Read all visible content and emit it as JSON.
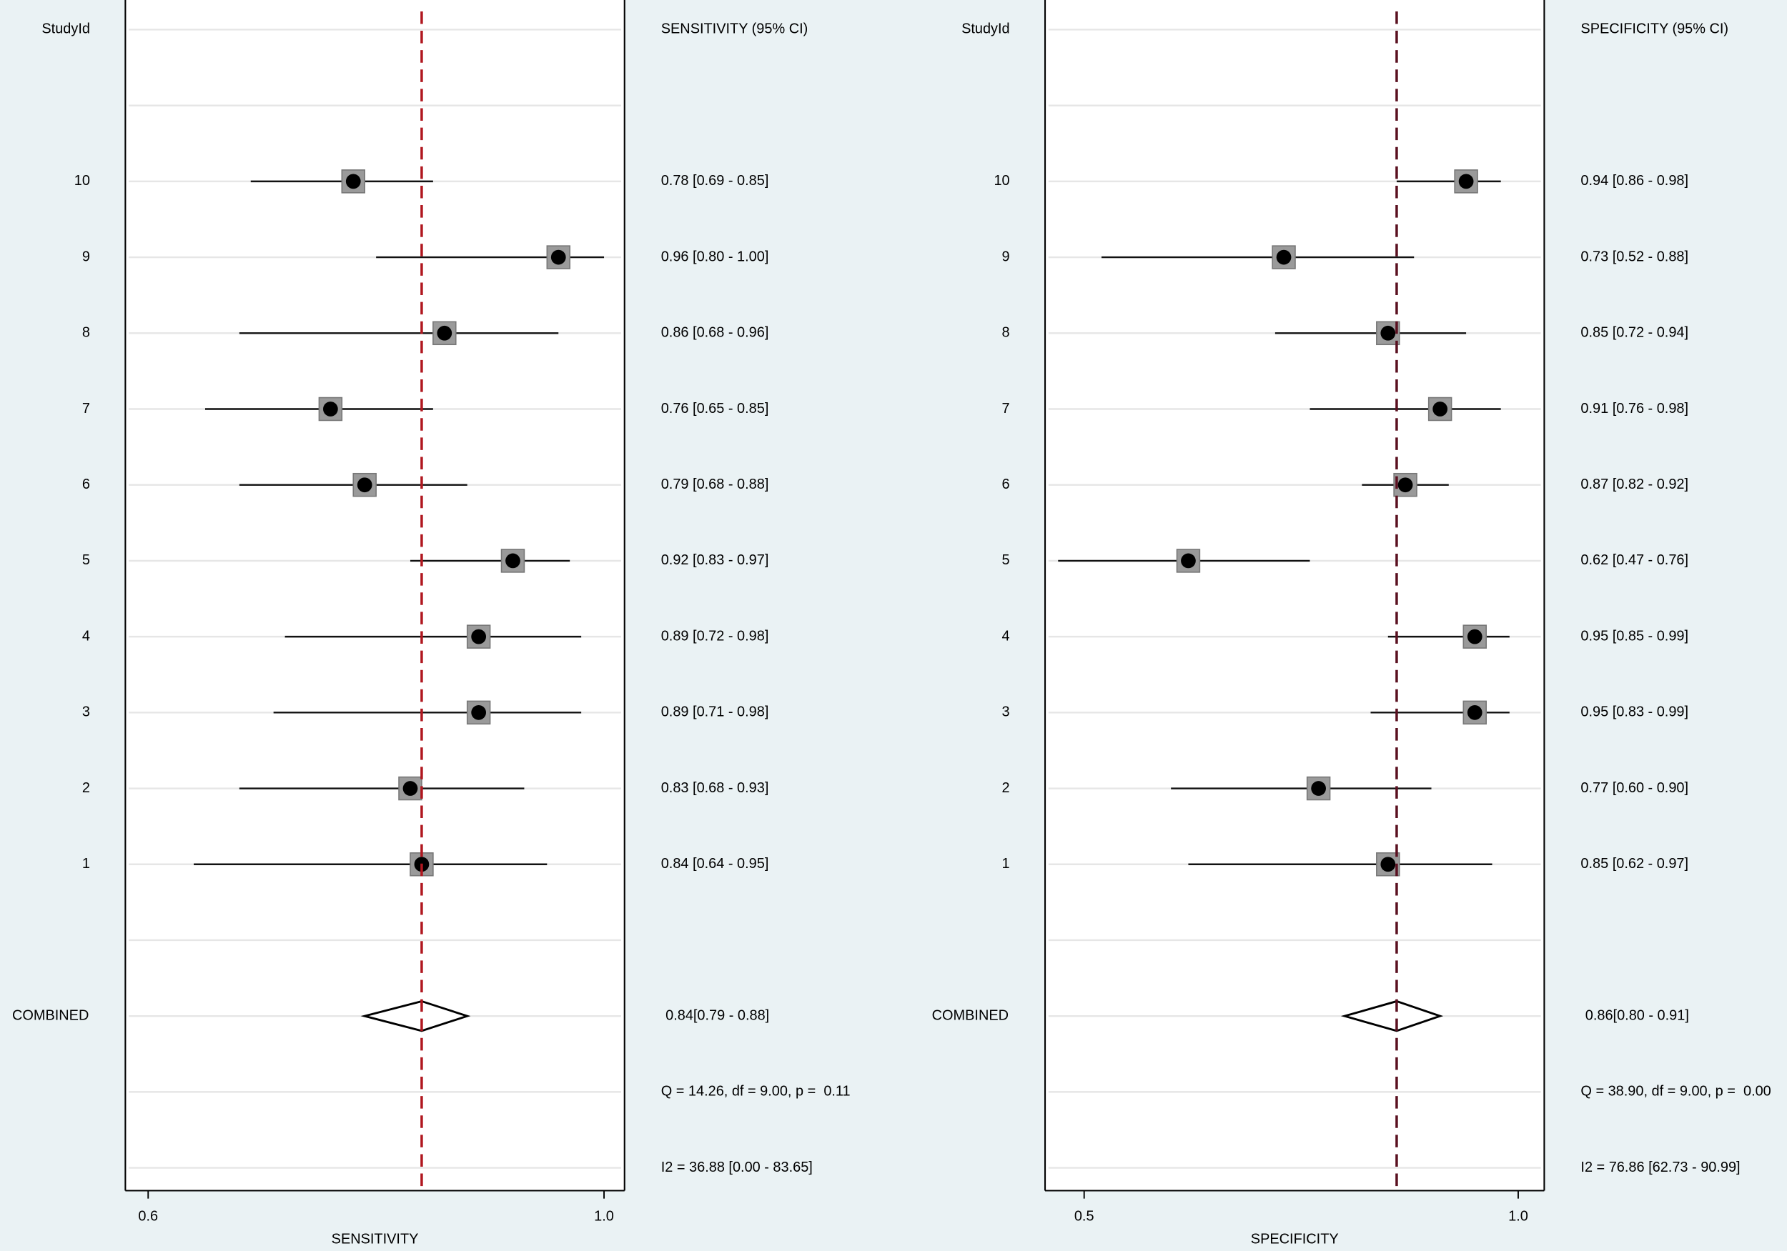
{
  "chart_data": [
    {
      "type": "forest",
      "study_header": "StudyId",
      "ci_header": "SENSITIVITY (95% CI)",
      "xlabel": "SENSITIVITY",
      "categories": [
        "10",
        "9",
        "8",
        "7",
        "6",
        "5",
        "4",
        "3",
        "2",
        "1",
        "COMBINED"
      ],
      "values": [
        0.78,
        0.96,
        0.86,
        0.76,
        0.79,
        0.92,
        0.89,
        0.89,
        0.83,
        0.84,
        0.84
      ],
      "lower": [
        0.69,
        0.8,
        0.68,
        0.65,
        0.68,
        0.83,
        0.72,
        0.71,
        0.68,
        0.64,
        0.79
      ],
      "upper": [
        0.85,
        1.0,
        0.96,
        0.85,
        0.88,
        0.97,
        0.98,
        0.98,
        0.93,
        0.95,
        0.88
      ],
      "value_labels": [
        "0.78 [0.69 - 0.85]",
        "0.96 [0.80 - 1.00]",
        "0.86 [0.68 - 0.96]",
        "0.76 [0.65 - 0.85]",
        "0.79 [0.68 - 0.88]",
        "0.92 [0.83 - 0.97]",
        "0.89 [0.72 - 0.98]",
        "0.89 [0.71 - 0.98]",
        "0.83 [0.68 - 0.93]",
        "0.84 [0.64 - 0.95]",
        "0.84[0.79 - 0.88]"
      ],
      "annotations": [
        "Q = 14.26, df = 9.00, p =  0.11",
        "I2 = 36.88 [0.00 - 83.65]"
      ],
      "xlim": [
        0.58,
        1.018
      ],
      "xticks": [
        0.6,
        {
          "value": 1,
          "label": "1.0"
        }
      ],
      "marker_color": "#9a9a9a",
      "ref_color": "#b0171f"
    },
    {
      "type": "forest",
      "study_header": "StudyId",
      "ci_header": "SPECIFICITY (95% CI)",
      "xlabel": "SPECIFICITY",
      "categories": [
        "10",
        "9",
        "8",
        "7",
        "6",
        "5",
        "4",
        "3",
        "2",
        "1",
        "COMBINED"
      ],
      "values": [
        0.94,
        0.73,
        0.85,
        0.91,
        0.87,
        0.62,
        0.95,
        0.95,
        0.77,
        0.85,
        0.86
      ],
      "lower": [
        0.86,
        0.52,
        0.72,
        0.76,
        0.82,
        0.47,
        0.85,
        0.83,
        0.6,
        0.62,
        0.8
      ],
      "upper": [
        0.98,
        0.88,
        0.94,
        0.98,
        0.92,
        0.76,
        0.99,
        0.99,
        0.9,
        0.97,
        0.91
      ],
      "value_labels": [
        "0.94 [0.86 - 0.98]",
        "0.73 [0.52 - 0.88]",
        "0.85 [0.72 - 0.94]",
        "0.91 [0.76 - 0.98]",
        "0.87 [0.82 - 0.92]",
        "0.62 [0.47 - 0.76]",
        "0.95 [0.85 - 0.99]",
        "0.95 [0.83 - 0.99]",
        "0.77 [0.60 - 0.90]",
        "0.85 [0.62 - 0.97]",
        "0.86[0.80 - 0.91]"
      ],
      "annotations": [
        "Q = 38.90, df = 9.00, p =  0.00",
        "I2 = 76.86 [62.73 - 90.99]"
      ],
      "xlim": [
        0.455,
        1.03
      ],
      "xticks": [
        0.5,
        {
          "value": 1,
          "label": "1.0"
        }
      ],
      "marker_color": "#9a9a9a",
      "ref_color": "#5a1020"
    }
  ]
}
